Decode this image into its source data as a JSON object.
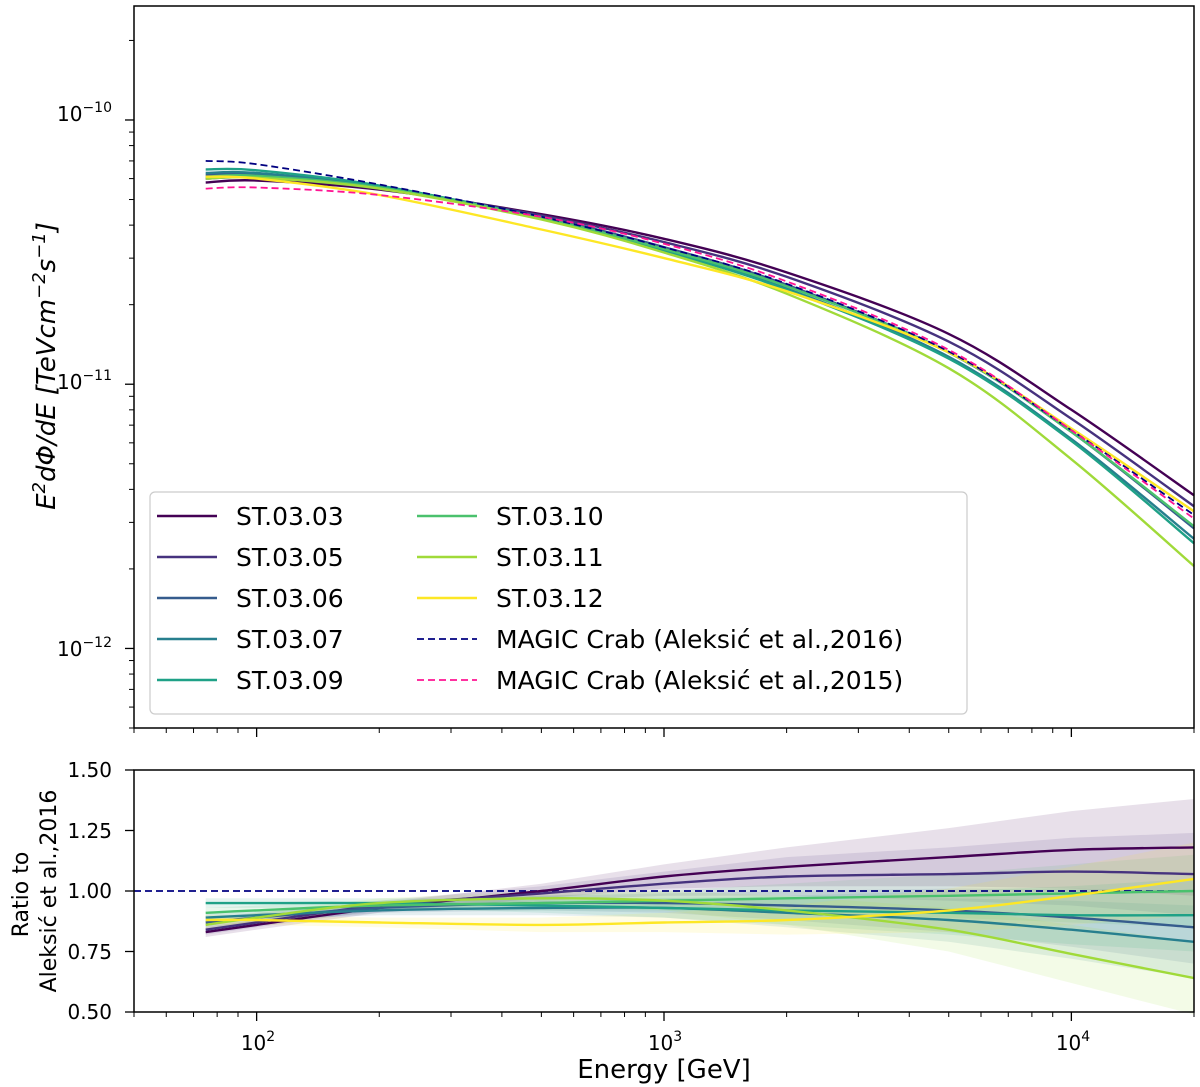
{
  "chart_data": [
    {
      "type": "line",
      "panel": "top",
      "ylabel": "E^2 dΦ/dE [TeV cm^-2 s^-1]",
      "xlabel": "",
      "xscale": "log",
      "yscale": "log",
      "xlim": [
        50,
        20000
      ],
      "ylim": [
        5e-13,
        2.7e-10
      ],
      "x_ticks": [
        100,
        1000,
        10000
      ],
      "y_ticks": [
        {
          "value": 1e-10,
          "base": "10",
          "exp": "−10"
        },
        {
          "value": 1e-11,
          "base": "10",
          "exp": "−11"
        },
        {
          "value": 1e-12,
          "base": "10",
          "exp": "−12"
        }
      ],
      "legend_position": "lower-left",
      "x": [
        75,
        100,
        200,
        500,
        1000,
        2000,
        5000,
        10000,
        20000
      ],
      "series": [
        {
          "name": "ST.03.03",
          "color": "#440154",
          "style": "solid",
          "values": [
            5.8e-11,
            5.9e-11,
            5.45e-11,
            4.4e-11,
            3.55e-11,
            2.65e-11,
            1.55e-11,
            8e-12,
            3.8e-12
          ]
        },
        {
          "name": "ST.03.05",
          "color": "#46327e",
          "style": "solid",
          "values": [
            6e-11,
            6.05e-11,
            5.5e-11,
            4.35e-11,
            3.45e-11,
            2.55e-11,
            1.45e-11,
            7.4e-12,
            3.45e-12
          ]
        },
        {
          "name": "ST.03.06",
          "color": "#365c8d",
          "style": "solid",
          "values": [
            6.2e-11,
            6.2e-11,
            5.55e-11,
            4.3e-11,
            3.3e-11,
            2.38e-11,
            1.32e-11,
            6.6e-12,
            2.85e-12
          ]
        },
        {
          "name": "ST.03.07",
          "color": "#277f8e",
          "style": "solid",
          "values": [
            6.3e-11,
            6.3e-11,
            5.6e-11,
            4.25e-11,
            3.2e-11,
            2.3e-11,
            1.27e-11,
            6.2e-12,
            2.6e-12
          ]
        },
        {
          "name": "ST.03.09",
          "color": "#1fa187",
          "style": "solid",
          "values": [
            6.5e-11,
            6.45e-11,
            5.65e-11,
            4.25e-11,
            3.2e-11,
            2.28e-11,
            1.25e-11,
            6.1e-12,
            2.5e-12
          ]
        },
        {
          "name": "ST.03.10",
          "color": "#4ac16d",
          "style": "solid",
          "values": [
            6.1e-11,
            6.15e-11,
            5.55e-11,
            4.25e-11,
            3.25e-11,
            2.35e-11,
            1.32e-11,
            6.6e-12,
            2.9e-12
          ]
        },
        {
          "name": "ST.03.11",
          "color": "#a0da39",
          "style": "solid",
          "values": [
            6e-11,
            6.05e-11,
            5.5e-11,
            4.2e-11,
            3.15e-11,
            2.2e-11,
            1.15e-11,
            5.2e-12,
            2.05e-12
          ]
        },
        {
          "name": "ST.03.12",
          "color": "#fde725",
          "style": "solid",
          "values": [
            6.1e-11,
            6e-11,
            5.2e-11,
            3.85e-11,
            3e-11,
            2.25e-11,
            1.32e-11,
            6.8e-12,
            3.3e-12
          ]
        },
        {
          "name": "MAGIC Crab (Aleksić et al.,2016)",
          "color": "#000080",
          "style": "dashed",
          "values": [
            7e-11,
            6.8e-11,
            5.7e-11,
            4.3e-11,
            3.3e-11,
            2.4e-11,
            1.33e-11,
            6.7e-12,
            3.2e-12
          ]
        },
        {
          "name": "MAGIC Crab (Aleksić et al.,2015)",
          "color": "#ff1493",
          "style": "dashed",
          "values": [
            5.5e-11,
            5.55e-11,
            5.2e-11,
            4.3e-11,
            3.4e-11,
            2.45e-11,
            1.35e-11,
            6.7e-12,
            3.1e-12
          ]
        }
      ]
    },
    {
      "type": "line",
      "panel": "bottom",
      "ylabel": "Ratio to Aleksić et al.,2016",
      "xlabel": "Energy [GeV]",
      "xscale": "log",
      "yscale": "linear",
      "xlim": [
        50,
        20000
      ],
      "ylim": [
        0.5,
        1.5
      ],
      "x_ticks": [
        100,
        1000,
        10000
      ],
      "y_ticks": [
        "0.50",
        "0.75",
        "1.00",
        "1.25",
        "1.50"
      ],
      "reference_line": {
        "value": 1.0,
        "color": "#000080",
        "style": "dashed"
      },
      "x": [
        75,
        100,
        200,
        500,
        1000,
        2000,
        5000,
        10000,
        20000
      ],
      "series": [
        {
          "name": "ST.03.03",
          "color": "#440154",
          "values": [
            0.83,
            0.86,
            0.93,
            1.0,
            1.06,
            1.1,
            1.14,
            1.17,
            1.18
          ],
          "band": [
            0.02,
            0.02,
            0.02,
            0.03,
            0.05,
            0.08,
            0.12,
            0.16,
            0.2
          ]
        },
        {
          "name": "ST.03.05",
          "color": "#46327e",
          "values": [
            0.84,
            0.87,
            0.94,
            0.99,
            1.03,
            1.06,
            1.07,
            1.08,
            1.07
          ],
          "band": [
            0.02,
            0.02,
            0.02,
            0.03,
            0.05,
            0.08,
            0.11,
            0.14,
            0.17
          ]
        },
        {
          "name": "ST.03.06",
          "color": "#365c8d",
          "values": [
            0.87,
            0.89,
            0.93,
            0.95,
            0.95,
            0.94,
            0.92,
            0.89,
            0.85
          ],
          "band": [
            0.02,
            0.02,
            0.02,
            0.03,
            0.04,
            0.06,
            0.09,
            0.12,
            0.15
          ]
        },
        {
          "name": "ST.03.07",
          "color": "#277f8e",
          "values": [
            0.89,
            0.9,
            0.92,
            0.93,
            0.93,
            0.91,
            0.88,
            0.84,
            0.79
          ],
          "band": [
            0.02,
            0.02,
            0.02,
            0.03,
            0.04,
            0.06,
            0.09,
            0.12,
            0.15
          ]
        },
        {
          "name": "ST.03.09",
          "color": "#1fa187",
          "values": [
            0.95,
            0.95,
            0.95,
            0.94,
            0.93,
            0.92,
            0.91,
            0.9,
            0.9
          ],
          "band": [
            0.02,
            0.02,
            0.02,
            0.03,
            0.04,
            0.06,
            0.09,
            0.12,
            0.15
          ]
        },
        {
          "name": "ST.03.10",
          "color": "#4ac16d",
          "values": [
            0.91,
            0.92,
            0.94,
            0.95,
            0.96,
            0.97,
            0.98,
            0.99,
            1.0
          ],
          "band": [
            0.02,
            0.02,
            0.02,
            0.03,
            0.04,
            0.06,
            0.09,
            0.12,
            0.15
          ]
        },
        {
          "name": "ST.03.11",
          "color": "#a0da39",
          "values": [
            0.86,
            0.89,
            0.95,
            0.97,
            0.96,
            0.92,
            0.84,
            0.74,
            0.64
          ],
          "band": [
            0.02,
            0.02,
            0.02,
            0.03,
            0.04,
            0.06,
            0.09,
            0.12,
            0.15
          ]
        },
        {
          "name": "ST.03.12",
          "color": "#fde725",
          "values": [
            0.88,
            0.88,
            0.87,
            0.86,
            0.87,
            0.88,
            0.92,
            0.98,
            1.05
          ],
          "band": [
            0.02,
            0.02,
            0.02,
            0.03,
            0.04,
            0.06,
            0.09,
            0.12,
            0.15
          ]
        }
      ]
    }
  ]
}
